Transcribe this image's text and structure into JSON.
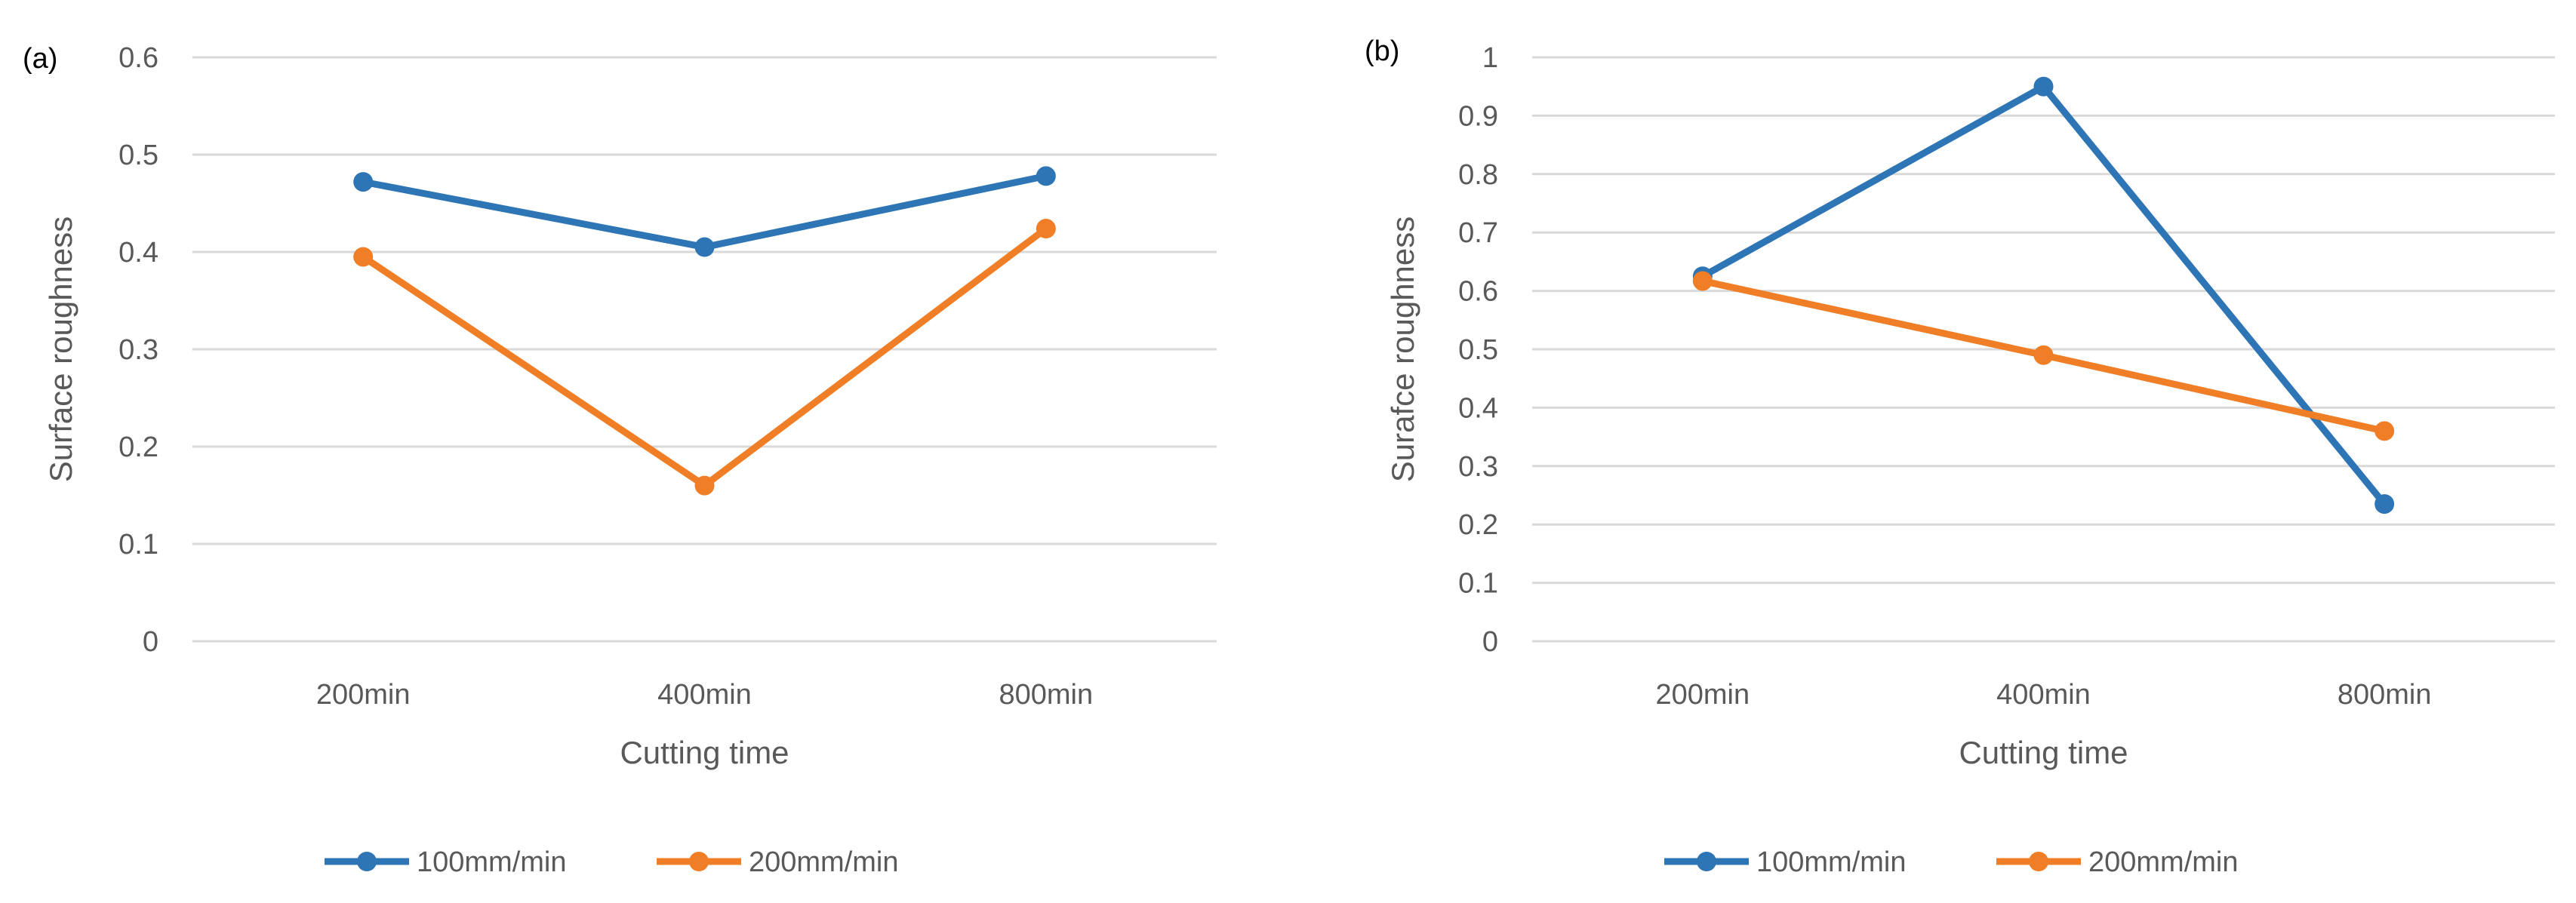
{
  "chart_data": [
    {
      "panel_label": "(a)",
      "type": "line",
      "categories": [
        "200min",
        "400min",
        "800min"
      ],
      "xlabel": "Cutting time",
      "ylabel": "Surface roughness",
      "ylim": [
        0,
        0.6
      ],
      "yticks": [
        "0",
        "0.1",
        "0.2",
        "0.3",
        "0.4",
        "0.5",
        "0.6"
      ],
      "grid": true,
      "legend_position": "bottom",
      "series": [
        {
          "name": "100mm/min",
          "color": "#2e75b6",
          "values": [
            0.472,
            0.405,
            0.478
          ]
        },
        {
          "name": "200mm/min",
          "color": "#f07e26",
          "values": [
            0.395,
            0.16,
            0.424
          ]
        }
      ]
    },
    {
      "panel_label": "(b)",
      "type": "line",
      "categories": [
        "200min",
        "400min",
        "800min"
      ],
      "xlabel": "Cutting time",
      "ylabel": "Surafce roughness",
      "ylim": [
        0,
        1
      ],
      "yticks": [
        "0",
        "0.1",
        "0.2",
        "0.3",
        "0.4",
        "0.5",
        "0.6",
        "0.7",
        "0.8",
        "0.9",
        "1"
      ],
      "grid": true,
      "legend_position": "bottom",
      "series": [
        {
          "name": "100mm/min",
          "color": "#2e75b6",
          "values": [
            0.625,
            0.95,
            0.235
          ]
        },
        {
          "name": "200mm/min",
          "color": "#f07e26",
          "values": [
            0.617,
            0.49,
            0.36
          ]
        }
      ]
    }
  ]
}
